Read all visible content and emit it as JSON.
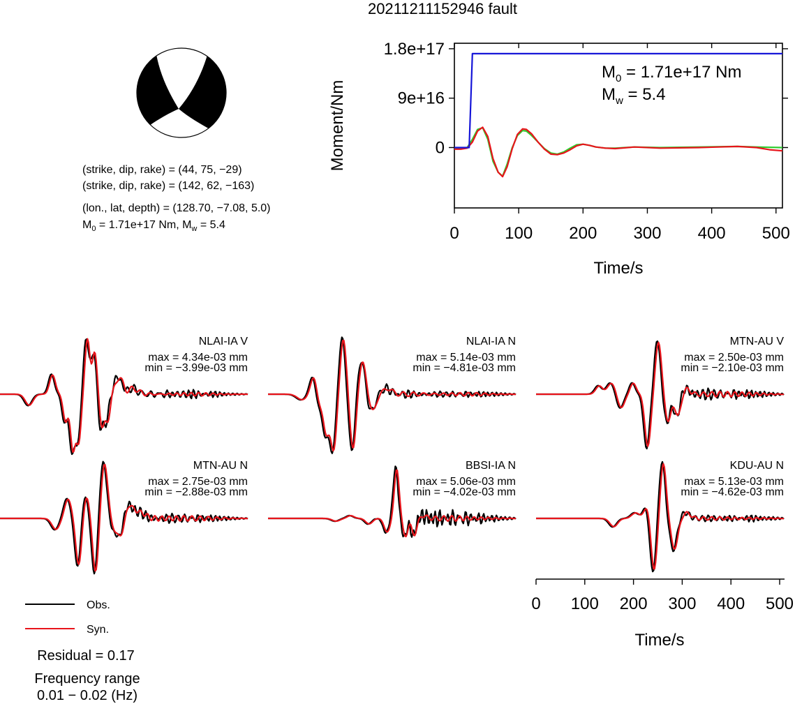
{
  "title": "20211211152946 fault",
  "focal": {
    "line1": "(strike, dip, rake) = (44, 75, −29)",
    "line2": "(strike, dip, rake) = (142, 62, −163)",
    "line3": "(lon., lat, depth) = (128.70, −7.08, 5.0)",
    "m0_prefix": "M",
    "m0_sub": "0",
    "m0_rest": " = 1.71e+17 Nm, M",
    "mw_sub": "w",
    "mw_rest": " = 5.4"
  },
  "colors": {
    "obs": "#000000",
    "syn": "#e8141b",
    "moment": "#1515d8",
    "stf": "#2ecc2e"
  },
  "chart_data": [
    {
      "type": "line",
      "name": "moment-rate",
      "ylabel": "Moment/Nm",
      "xlabel": "Time/s",
      "xlim": [
        0,
        510
      ],
      "ylim": [
        -1.1e+17,
        1.9e+17
      ],
      "xticks": [
        "0",
        "100",
        "200",
        "300",
        "400",
        "500"
      ],
      "xtick_values": [
        0,
        100,
        200,
        300,
        400,
        500
      ],
      "yticks": [
        "0",
        "9e+16",
        "1.8e+17"
      ],
      "ytick_values": [
        0,
        9e+16,
        1.8e+17
      ],
      "annotation": {
        "m0_main": "M",
        "m0_sub": "0",
        "m0_val": " = 1.71e+17 Nm",
        "mw_main": "M",
        "mw_sub": "w",
        "mw_val": " = 5.4"
      },
      "series": [
        {
          "color": "#1515d8",
          "x": [
            0,
            23,
            28,
            510
          ],
          "y": [
            0,
            0,
            1.71e+17,
            1.71e+17
          ]
        },
        {
          "color": "#2ecc2e",
          "x": [
            0,
            10,
            20,
            28,
            36,
            44,
            52,
            60,
            68,
            75,
            82,
            90,
            98,
            106,
            112,
            120,
            130,
            140,
            150,
            160,
            170,
            180,
            190,
            200,
            210,
            220,
            235,
            250,
            280,
            320,
            380,
            440,
            470,
            510
          ],
          "y": [
            -2000000000000000.0,
            -2000000000000000.0,
            0,
            1.5e+16,
            3.3e+16,
            3.6e+16,
            1.5e+16,
            -2.5e+16,
            -4.5e+16,
            -5.2e+16,
            -3e+16,
            0,
            2.2e+16,
            3.1e+16,
            3e+16,
            2.2e+16,
            1e+16,
            -2000000000000000.0,
            -1e+16,
            -1.2e+16,
            -8000000000000000.0,
            -1000000000000000.0,
            5000000000000000.0,
            6000000000000000.0,
            4000000000000000.0,
            1000000000000000.0,
            -1000000000000000.0,
            -1000000000000000.0,
            1000000000000000.0,
            0,
            1000000000000000.0,
            2000000000000000.0,
            1000000000000000.0,
            0
          ]
        },
        {
          "color": "#e8141b",
          "x": [
            0,
            10,
            20,
            28,
            36,
            44,
            52,
            60,
            68,
            75,
            82,
            90,
            98,
            106,
            112,
            120,
            130,
            140,
            150,
            160,
            170,
            180,
            190,
            200,
            210,
            220,
            235,
            250,
            280,
            320,
            380,
            440,
            470,
            490,
            510
          ],
          "y": [
            -3000000000000000.0,
            -3000000000000000.0,
            -1000000000000000.0,
            1e+16,
            3e+16,
            3.7e+16,
            2e+16,
            -2e+16,
            -4.5e+16,
            -5.3e+16,
            -3.5e+16,
            -2000000000000000.0,
            2.4e+16,
            3.4e+16,
            3.3e+16,
            2.5e+16,
            1e+16,
            -3000000000000000.0,
            -1.2e+16,
            -1.3e+16,
            -1e+16,
            -4000000000000000.0,
            3000000000000000.0,
            6000000000000000.0,
            4000000000000000.0,
            1000000000000000.0,
            -1000000000000000.0,
            -2000000000000000.0,
            1000000000000000.0,
            -1000000000000000.0,
            0,
            2000000000000000.0,
            0,
            -4000000000000000.0,
            -6000000000000000.0
          ]
        }
      ]
    },
    {
      "type": "line",
      "name": "waveforms",
      "xlabel": "Time/s",
      "xlim": [
        0,
        510
      ],
      "xticks": [
        "0",
        "100",
        "200",
        "300",
        "400",
        "500"
      ],
      "xtick_values": [
        0,
        100,
        200,
        300,
        400,
        500
      ],
      "traces": [
        {
          "station": "NLAI-IA V",
          "max": "max = 4.34e-03 mm",
          "min": "min = −3.99e-03 mm",
          "peaks": [
            [
              60,
              -0.2,
              8
            ],
            [
              108,
              0.35,
              6
            ],
            [
              135,
              -0.5,
              5
            ],
            [
              150,
              -1.0,
              5
            ],
            [
              162,
              -0.85,
              5
            ],
            [
              180,
              1.0,
              5
            ],
            [
              195,
              0.75,
              5
            ],
            [
              210,
              -0.6,
              5
            ],
            [
              222,
              -0.45,
              5
            ],
            [
              245,
              0.3,
              8
            ],
            [
              275,
              0.1,
              10
            ]
          ],
          "noise_obs": [
            [
              220,
              0.08,
              13
            ],
            [
              300,
              0.05,
              17
            ],
            [
              380,
              0.06,
              11
            ],
            [
              430,
              0.04,
              9
            ]
          ],
          "noise_syn": [
            [
              260,
              0.05,
              19
            ],
            [
              400,
              0.03,
              15
            ]
          ]
        },
        {
          "station": "NLAI-IA N",
          "max": "max = 5.14e-03 mm",
          "min": "min = −4.81e-03 mm",
          "peaks": [
            [
              70,
              -0.1,
              10
            ],
            [
              95,
              0.35,
              7
            ],
            [
              105,
              -0.25,
              6
            ],
            [
              120,
              -0.7,
              6
            ],
            [
              135,
              -1.0,
              6
            ],
            [
              155,
              1.0,
              6
            ],
            [
              175,
              -1.0,
              6
            ],
            [
              195,
              0.6,
              7
            ],
            [
              215,
              -0.3,
              8
            ],
            [
              245,
              0.1,
              10
            ]
          ],
          "noise_obs": [
            [
              230,
              0.06,
              15
            ],
            [
              290,
              0.05,
              11
            ],
            [
              370,
              0.04,
              13
            ],
            [
              440,
              0.04,
              9
            ]
          ],
          "noise_syn": [
            [
              280,
              0.04,
              21
            ],
            [
              410,
              0.03,
              17
            ]
          ]
        },
        {
          "station": "MTN-AU V",
          "max": "max = 2.50e-03 mm",
          "min": "min = −2.10e-03 mm",
          "peaks": [
            [
              130,
              0.15,
              7
            ],
            [
              155,
              0.2,
              8
            ],
            [
              175,
              -0.25,
              7
            ],
            [
              200,
              0.2,
              6
            ],
            [
              230,
              -0.95,
              6
            ],
            [
              252,
              0.95,
              6
            ],
            [
              272,
              -0.5,
              6
            ],
            [
              292,
              -0.4,
              6
            ],
            [
              310,
              0.1,
              7
            ]
          ],
          "noise_obs": [
            [
              320,
              0.08,
              11
            ],
            [
              380,
              0.06,
              13
            ],
            [
              440,
              0.06,
              9
            ]
          ],
          "noise_syn": [
            [
              340,
              0.04,
              17
            ],
            [
              420,
              0.04,
              15
            ]
          ]
        },
        {
          "station": "MTN-AU N",
          "max": "max = 2.75e-03 mm",
          "min": "min = −2.88e-03 mm",
          "peaks": [
            [
              115,
              -0.2,
              8
            ],
            [
              140,
              0.35,
              7
            ],
            [
              162,
              -0.85,
              6
            ],
            [
              178,
              0.4,
              6
            ],
            [
              197,
              -1.0,
              6
            ],
            [
              215,
              1.0,
              7
            ],
            [
              235,
              -0.2,
              7
            ],
            [
              250,
              -0.35,
              7
            ],
            [
              265,
              0.25,
              10
            ],
            [
              290,
              0.1,
              10
            ]
          ],
          "noise_obs": [
            [
              290,
              0.08,
              11
            ],
            [
              360,
              0.06,
              13
            ],
            [
              430,
              0.05,
              9
            ]
          ],
          "noise_syn": [
            [
              320,
              0.05,
              15
            ],
            [
              410,
              0.04,
              17
            ]
          ]
        },
        {
          "station": "BBSI-IA N",
          "max": "max = 5.06e-03 mm",
          "min": "min = −4.02e-03 mm",
          "peaks": [
            [
              140,
              -0.05,
              8
            ],
            [
              170,
              0.05,
              7
            ],
            [
              208,
              -0.1,
              7
            ],
            [
              245,
              -0.25,
              6
            ],
            [
              265,
              0.9,
              5
            ],
            [
              285,
              -0.5,
              6
            ],
            [
              290,
              0.3,
              6
            ],
            [
              300,
              -0.35,
              6
            ],
            [
              318,
              0.05,
              8
            ]
          ],
          "noise_obs": [
            [
              330,
              0.12,
              9
            ],
            [
              390,
              0.08,
              13
            ],
            [
              440,
              0.06,
              9
            ]
          ],
          "noise_syn": [
            [
              350,
              0.04,
              17
            ],
            [
              420,
              0.03,
              15
            ]
          ]
        },
        {
          "station": "KDU-AU N",
          "max": "max = 5.13e-03 mm",
          "min": "min = −4.62e-03 mm",
          "peaks": [
            [
              160,
              -0.15,
              8
            ],
            [
              205,
              0.1,
              8
            ],
            [
              228,
              0.2,
              6
            ],
            [
              243,
              -0.95,
              6
            ],
            [
              262,
              1.0,
              6
            ],
            [
              285,
              -0.55,
              7
            ],
            [
              310,
              0.1,
              8
            ]
          ],
          "noise_obs": [
            [
              320,
              0.05,
              13
            ],
            [
              400,
              0.04,
              11
            ],
            [
              450,
              0.04,
              9
            ]
          ],
          "noise_syn": [
            [
              340,
              0.03,
              17
            ],
            [
              430,
              0.02,
              15
            ]
          ]
        }
      ]
    }
  ],
  "legend": {
    "obs": "Obs.",
    "syn": "Syn."
  },
  "footer": {
    "residual": "Residual = 0.17",
    "freq_label": "Frequency range",
    "freq_value": "0.01 − 0.02 (Hz)"
  }
}
